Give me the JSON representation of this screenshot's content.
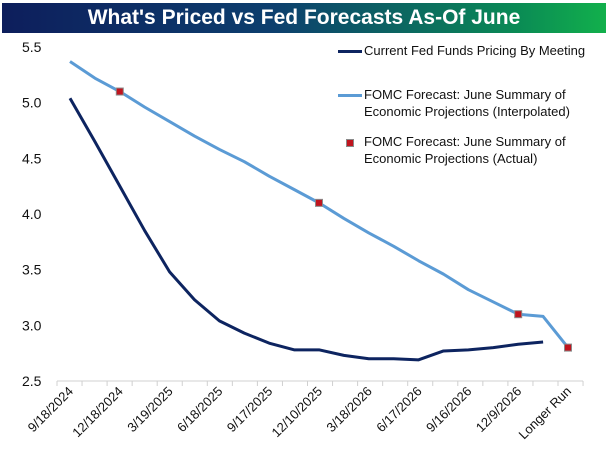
{
  "chart_data": {
    "type": "line",
    "title": "What's Priced vs Fed Forecasts As-Of June",
    "xlabel": "",
    "ylabel": "",
    "ylim": [
      2.5,
      5.5
    ],
    "yticks": [
      "2.5",
      "3.0",
      "3.5",
      "4.0",
      "4.5",
      "5.0",
      "5.5"
    ],
    "categories": [
      "9/18/2024",
      "",
      "12/18/2024",
      "",
      "3/19/2025",
      "",
      "6/18/2025",
      "",
      "9/17/2025",
      "",
      "12/10/2025",
      "",
      "3/18/2026",
      "",
      "6/17/2026",
      "",
      "9/16/2026",
      "",
      "12/9/2026",
      "",
      "Longer Run"
    ],
    "series": [
      {
        "name": "Current Fed Funds Pricing By Meeting",
        "color": "#0d2460",
        "values": [
          5.04,
          4.65,
          4.25,
          3.85,
          3.48,
          3.23,
          3.04,
          2.93,
          2.84,
          2.78,
          2.78,
          2.73,
          2.7,
          2.7,
          2.69,
          2.77,
          2.78,
          2.8,
          2.83,
          2.85,
          null
        ]
      },
      {
        "name": "FOMC Forecast: June Summary of Economic Projections (Interpolated)",
        "color": "#5b9bd5",
        "values": [
          5.37,
          5.22,
          5.1,
          4.96,
          4.83,
          4.7,
          4.58,
          4.47,
          4.34,
          4.22,
          4.1,
          3.96,
          3.83,
          3.71,
          3.58,
          3.46,
          3.32,
          3.21,
          3.1,
          3.08,
          2.8
        ]
      },
      {
        "name": "FOMC Forecast: June Summary of Economic Projections (Actual)",
        "type": "scatter",
        "color": "#c0141e",
        "points": [
          [
            2,
            5.1
          ],
          [
            10,
            4.1
          ],
          [
            18,
            3.1
          ],
          [
            20,
            2.8
          ]
        ]
      }
    ],
    "legend_position": "top-right",
    "grid": false
  },
  "legend": {
    "l1": "Current Fed Funds Pricing By Meeting",
    "l2a": "FOMC Forecast: June Summary of",
    "l2b": "Economic Projections (Interpolated)",
    "l3a": "FOMC Forecast: June Summary of",
    "l3b": "Economic Projections (Actual)"
  }
}
